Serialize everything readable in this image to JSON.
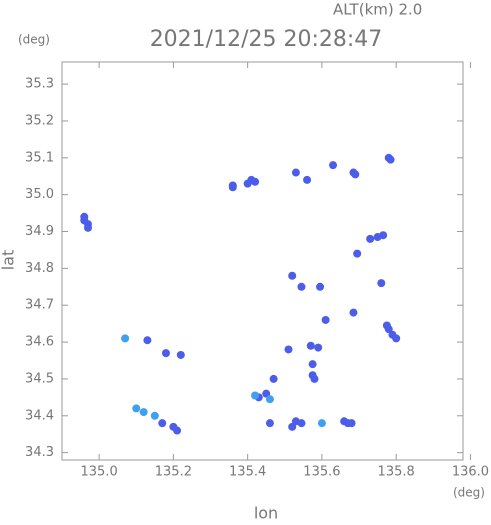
{
  "chart_data": {
    "type": "scatter",
    "title": "2021/12/25 20:28:47",
    "altitude_label": "ALT(km)  2.0",
    "y_unit": "(deg)",
    "x_unit": "(deg)",
    "xlabel": "lon",
    "ylabel": "lat",
    "xlim": [
      134.9,
      135.98
    ],
    "ylim": [
      34.28,
      35.36
    ],
    "xticks": [
      {
        "value": 135,
        "label": "135.0"
      },
      135.2,
      135.4,
      135.6,
      135.8,
      {
        "value": 136,
        "label": "136.0"
      }
    ],
    "yticks": [
      34.3,
      34.4,
      34.5,
      34.6,
      34.7,
      34.8,
      34.9,
      {
        "value": 35,
        "label": "35.0"
      },
      35.1,
      35.2,
      35.3
    ],
    "grid": false,
    "series": [
      {
        "color": "#4b5de9",
        "x": [
          134.96,
          134.96,
          134.97,
          134.97,
          135.41,
          135.42,
          135.4,
          135.36,
          135.36,
          135.53,
          135.56,
          135.63,
          135.685,
          135.69,
          135.78,
          135.785,
          135.73,
          135.75,
          135.765,
          135.695,
          135.52,
          135.545,
          135.595,
          135.76,
          135.61,
          135.685,
          135.775,
          135.78,
          135.79,
          135.8,
          135.13,
          135.18,
          135.22,
          135.51,
          135.57,
          135.59,
          135.575,
          135.47,
          135.575,
          135.58,
          135.43,
          135.45,
          135.17,
          135.2,
          135.21,
          135.46,
          135.53,
          135.545,
          135.52,
          135.66,
          135.67,
          135.68
        ],
        "y": [
          34.94,
          34.93,
          34.92,
          34.91,
          35.04,
          35.035,
          35.03,
          35.025,
          35.02,
          35.06,
          35.04,
          35.08,
          35.06,
          35.055,
          35.1,
          35.095,
          34.88,
          34.885,
          34.89,
          34.84,
          34.78,
          34.75,
          34.75,
          34.76,
          34.66,
          34.68,
          34.645,
          34.635,
          34.62,
          34.61,
          34.605,
          34.57,
          34.565,
          34.58,
          34.59,
          34.585,
          34.54,
          34.5,
          34.51,
          34.5,
          34.45,
          34.46,
          34.38,
          34.37,
          34.36,
          34.38,
          34.385,
          34.38,
          34.37,
          34.385,
          34.38,
          34.38
        ]
      },
      {
        "color": "#3f9ff0",
        "x": [
          135.07,
          135.1,
          135.12,
          135.15,
          135.42,
          135.6,
          135.46
        ],
        "y": [
          34.61,
          34.42,
          34.41,
          34.4,
          34.455,
          34.38,
          34.445
        ]
      }
    ]
  }
}
